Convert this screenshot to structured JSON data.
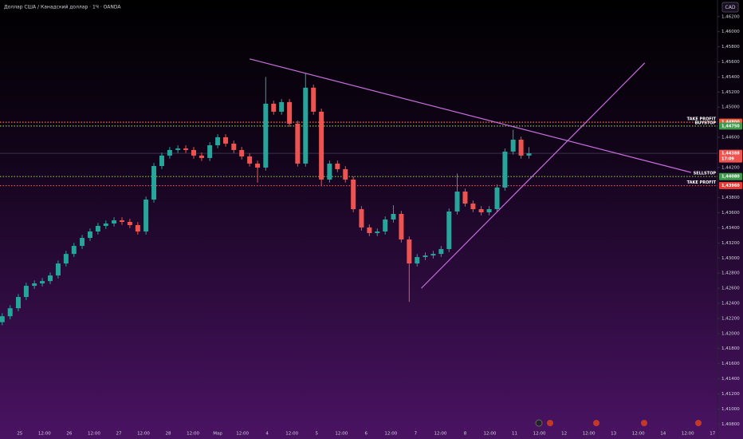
{
  "chart_data": {
    "type": "candlestick",
    "title": "Доллар США / Канадский доллар · 1Ч · OANDA",
    "currency": "CAD",
    "up_color": "#26a69a",
    "down_color": "#ef5350",
    "grid": false,
    "xlim": [
      -0.8,
      28.2
    ],
    "ylim": [
      1.4075,
      1.4642
    ],
    "xticks": [
      {
        "value": 0,
        "label": "25"
      },
      {
        "value": 1,
        "label": "12:00"
      },
      {
        "value": 2,
        "label": "26"
      },
      {
        "value": 3,
        "label": "12:00"
      },
      {
        "value": 4,
        "label": "27"
      },
      {
        "value": 5,
        "label": "12:00"
      },
      {
        "value": 6,
        "label": "28"
      },
      {
        "value": 7,
        "label": "12:00"
      },
      {
        "value": 8,
        "label": "Мар"
      },
      {
        "value": 9,
        "label": "12:00"
      },
      {
        "value": 10,
        "label": "4"
      },
      {
        "value": 11,
        "label": "12:00"
      },
      {
        "value": 12,
        "label": "5"
      },
      {
        "value": 13,
        "label": "12:00"
      },
      {
        "value": 14,
        "label": "6"
      },
      {
        "value": 15,
        "label": "12:00"
      },
      {
        "value": 16,
        "label": "7"
      },
      {
        "value": 17,
        "label": "12:00"
      },
      {
        "value": 18,
        "label": "8"
      },
      {
        "value": 19,
        "label": "12:00"
      },
      {
        "value": 20,
        "label": "11"
      },
      {
        "value": 21,
        "label": "12:00"
      },
      {
        "value": 22,
        "label": "12"
      },
      {
        "value": 23,
        "label": "12:00"
      },
      {
        "value": 24,
        "label": "13"
      },
      {
        "value": 25,
        "label": "12:00"
      },
      {
        "value": 26,
        "label": "14"
      },
      {
        "value": 27,
        "label": "12:00"
      },
      {
        "value": 28,
        "label": "17"
      }
    ],
    "yticks": [
      {
        "value": 1.462,
        "label": "1,46200"
      },
      {
        "value": 1.46,
        "label": "1,46000"
      },
      {
        "value": 1.458,
        "label": "1,45800"
      },
      {
        "value": 1.456,
        "label": "1,45600"
      },
      {
        "value": 1.454,
        "label": "1,45400"
      },
      {
        "value": 1.452,
        "label": "1,45200"
      },
      {
        "value": 1.45,
        "label": "1,45000"
      },
      {
        "value": 1.446,
        "label": "1,44600"
      },
      {
        "value": 1.442,
        "label": "1,44200"
      },
      {
        "value": 1.438,
        "label": "1,43800"
      },
      {
        "value": 1.436,
        "label": "1,43600"
      },
      {
        "value": 1.434,
        "label": "1,43400"
      },
      {
        "value": 1.432,
        "label": "1,43200"
      },
      {
        "value": 1.43,
        "label": "1,43000"
      },
      {
        "value": 1.428,
        "label": "1,42800"
      },
      {
        "value": 1.426,
        "label": "1,42600"
      },
      {
        "value": 1.424,
        "label": "1,42400"
      },
      {
        "value": 1.422,
        "label": "1,42200"
      },
      {
        "value": 1.42,
        "label": "1,42000"
      },
      {
        "value": 1.418,
        "label": "1,41800"
      },
      {
        "value": 1.416,
        "label": "1,41600"
      },
      {
        "value": 1.414,
        "label": "1,41400"
      },
      {
        "value": 1.412,
        "label": "1,41200"
      },
      {
        "value": 1.41,
        "label": "1,41000"
      },
      {
        "value": 1.408,
        "label": "1,40800"
      }
    ],
    "x": [
      -0.71,
      -0.39,
      -0.06,
      0.26,
      0.59,
      0.91,
      1.23,
      1.55,
      1.87,
      2.19,
      2.52,
      2.84,
      3.16,
      3.48,
      3.81,
      4.13,
      4.45,
      4.77,
      5.1,
      5.42,
      5.74,
      6.06,
      6.39,
      6.71,
      7.03,
      7.35,
      7.68,
      8.0,
      8.32,
      8.65,
      8.97,
      9.29,
      9.61,
      9.94,
      10.26,
      10.58,
      10.9,
      11.23,
      11.55,
      11.87,
      12.19,
      12.52,
      12.84,
      13.16,
      13.48,
      13.81,
      14.13,
      14.45,
      14.77,
      15.1,
      15.42,
      15.74,
      16.06,
      16.39,
      16.71,
      17.03,
      17.35,
      17.68,
      18.0,
      18.32,
      18.65,
      18.97,
      19.29,
      19.61,
      19.94,
      20.26,
      20.58
    ],
    "open": [
      1.4215,
      1.42229,
      1.42335,
      1.42484,
      1.42632,
      1.42664,
      1.42695,
      1.42769,
      1.42928,
      1.43055,
      1.43161,
      1.43267,
      1.43352,
      1.43426,
      1.43458,
      1.435,
      1.43479,
      1.43437,
      1.43352,
      1.43775,
      1.4422,
      1.44358,
      1.44432,
      1.44453,
      1.44432,
      1.44358,
      1.44326,
      1.44495,
      1.44601,
      1.44517,
      1.44432,
      1.44347,
      1.44252,
      1.44199,
      1.45046,
      1.4494,
      1.45067,
      1.44781,
      1.44252,
      1.45258,
      1.4494,
      1.4404,
      1.44252,
      1.44178,
      1.4404,
      1.43648,
      1.43405,
      1.43331,
      1.43352,
      1.43511,
      1.43585,
      1.43246,
      1.42928,
      1.43013,
      1.43034,
      1.43055,
      1.43119,
      1.43617,
      1.43881,
      1.43722,
      1.43648,
      1.43606,
      1.43648,
      1.43934,
      1.44411,
      1.44569,
      1.44358
    ],
    "high": [
      1.42269,
      1.42375,
      1.42524,
      1.42672,
      1.42704,
      1.42735,
      1.42809,
      1.42968,
      1.43095,
      1.43201,
      1.43307,
      1.43392,
      1.43466,
      1.43498,
      1.4354,
      1.4354,
      1.43519,
      1.43477,
      1.43815,
      1.4426,
      1.44398,
      1.44472,
      1.44493,
      1.44493,
      1.44472,
      1.44398,
      1.44535,
      1.44641,
      1.44641,
      1.44557,
      1.44472,
      1.44387,
      1.44292,
      1.454,
      1.45086,
      1.45107,
      1.45107,
      1.44821,
      1.4545,
      1.45298,
      1.4498,
      1.44292,
      1.44292,
      1.44218,
      1.4408,
      1.43688,
      1.43445,
      1.43392,
      1.43551,
      1.437,
      1.43625,
      1.43286,
      1.43053,
      1.43074,
      1.43095,
      1.43159,
      1.43657,
      1.4412,
      1.43921,
      1.43762,
      1.43688,
      1.43688,
      1.43974,
      1.44451,
      1.447,
      1.44609,
      1.4447
    ],
    "low": [
      1.4211,
      1.42189,
      1.42295,
      1.42444,
      1.42592,
      1.42624,
      1.42655,
      1.42729,
      1.42888,
      1.43015,
      1.43121,
      1.43227,
      1.43312,
      1.43386,
      1.43418,
      1.43439,
      1.43397,
      1.43312,
      1.43312,
      1.43735,
      1.4418,
      1.44318,
      1.44392,
      1.44392,
      1.44318,
      1.44286,
      1.44286,
      1.44455,
      1.44477,
      1.44392,
      1.44307,
      1.44212,
      1.44,
      1.44159,
      1.449,
      1.449,
      1.44741,
      1.44212,
      1.44212,
      1.449,
      1.4395,
      1.44,
      1.44138,
      1.44,
      1.43608,
      1.43365,
      1.43291,
      1.43291,
      1.43312,
      1.43471,
      1.43206,
      1.4242,
      1.42888,
      1.42973,
      1.42994,
      1.43015,
      1.43079,
      1.43577,
      1.43682,
      1.43608,
      1.43566,
      1.43566,
      1.43608,
      1.43894,
      1.44371,
      1.44318,
      1.44318
    ],
    "close": [
      1.42229,
      1.42335,
      1.42484,
      1.42632,
      1.42664,
      1.42695,
      1.42769,
      1.42928,
      1.43055,
      1.43161,
      1.43267,
      1.43352,
      1.43426,
      1.43458,
      1.435,
      1.43479,
      1.43437,
      1.43352,
      1.43775,
      1.4422,
      1.44358,
      1.44432,
      1.44453,
      1.44432,
      1.44358,
      1.44326,
      1.44495,
      1.44601,
      1.44517,
      1.44432,
      1.44347,
      1.44252,
      1.44199,
      1.45046,
      1.4494,
      1.45067,
      1.44781,
      1.44252,
      1.45258,
      1.4494,
      1.4404,
      1.44252,
      1.44178,
      1.4404,
      1.43648,
      1.43405,
      1.43331,
      1.43352,
      1.43511,
      1.43585,
      1.43246,
      1.42928,
      1.43013,
      1.43034,
      1.43055,
      1.43119,
      1.43617,
      1.43881,
      1.43722,
      1.43648,
      1.43606,
      1.43648,
      1.43934,
      1.44411,
      1.44569,
      1.44358,
      1.44388
    ],
    "last_price": {
      "value": 1.44388,
      "label": "1,44388",
      "countdown": "17:09",
      "color": "#ef5350"
    },
    "levels": [
      {
        "name": "TAKE PROFIT",
        "value": 1.448,
        "label": "1,44800",
        "color": "#ff7043",
        "tag_color": "#f05a3c"
      },
      {
        "name": "BUYSTOP",
        "value": 1.4475,
        "label": "1,44750",
        "color": "#8bc34a",
        "tag_color": "#3d9a4a"
      },
      {
        "name": "SELLSTOP",
        "value": 1.4408,
        "label": "1,44080",
        "color": "#8bc34a",
        "tag_color": "#3d9a4a"
      },
      {
        "name": "TAKE PROFIT",
        "value": 1.4396,
        "label": "1,43960",
        "color": "#ef5350",
        "tag_color": "#e53935"
      }
    ],
    "trendlines": [
      {
        "x": [
          9.29,
          27.13
        ],
        "y": [
          1.45639,
          1.44135
        ],
        "color": "#c86ee0"
      },
      {
        "x": [
          16.23,
          25.26
        ],
        "y": [
          1.426,
          1.45586
        ],
        "color": "#c86ee0"
      }
    ]
  }
}
